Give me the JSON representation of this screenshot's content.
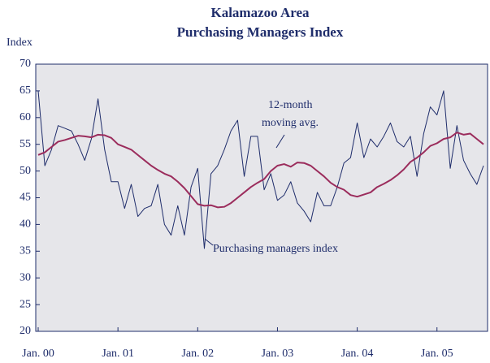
{
  "chart_data": {
    "type": "line",
    "title": [
      "Kalamazoo Area",
      "Purchasing Managers Index"
    ],
    "y_label": "Index",
    "annotations": [
      [
        "12-month",
        "moving avg."
      ],
      [
        "Purchasing managers index"
      ]
    ],
    "categories": [
      "Jan. 00",
      null,
      null,
      null,
      null,
      null,
      null,
      null,
      null,
      null,
      null,
      null,
      "Jan. 01",
      null,
      null,
      null,
      null,
      null,
      null,
      null,
      null,
      null,
      null,
      null,
      "Jan. 02",
      null,
      null,
      null,
      null,
      null,
      null,
      null,
      null,
      null,
      null,
      null,
      "Jan. 03",
      null,
      null,
      null,
      null,
      null,
      null,
      null,
      null,
      null,
      null,
      null,
      "Jan. 04",
      null,
      null,
      null,
      null,
      null,
      null,
      null,
      null,
      null,
      null,
      null,
      "Jan. 05",
      null,
      null,
      null,
      null,
      null,
      null,
      null
    ],
    "series": [
      {
        "name": "Purchasing managers index",
        "color": "#1f2d6b",
        "width": 1,
        "values": [
          65,
          51,
          54,
          58.5,
          58,
          57.5,
          55,
          52,
          56,
          63.5,
          54,
          48,
          48,
          43,
          47.5,
          41.5,
          43,
          43.5,
          47.5,
          40,
          38,
          43.5,
          38,
          47,
          50.5,
          35.5,
          49.5,
          51,
          54,
          57.5,
          59.5,
          49,
          56.5,
          56.5,
          46.5,
          49.5,
          44.5,
          45.5,
          48,
          44,
          42.5,
          40.5,
          46,
          43.5,
          43.5,
          47,
          51.5,
          52.5,
          59,
          52.5,
          56,
          54.5,
          56.5,
          59,
          55.5,
          54.5,
          56.5,
          49,
          57,
          62,
          60.5,
          65,
          50.5,
          58.5,
          52,
          49.5,
          47.5,
          51
        ]
      },
      {
        "name": "12-month moving avg.",
        "color": "#9b2c5c",
        "width": 2,
        "values": [
          53,
          53.5,
          54.5,
          55.5,
          55.8,
          56.2,
          56.6,
          56.5,
          56.3,
          56.8,
          56.7,
          56.2,
          55,
          54.5,
          54,
          53,
          52,
          51,
          50.2,
          49.5,
          49,
          48,
          46.8,
          45.3,
          43.8,
          43.5,
          43.6,
          43.2,
          43.3,
          44,
          45,
          46,
          47,
          47.8,
          48.5,
          50,
          51,
          51.3,
          50.8,
          51.6,
          51.5,
          51,
          50,
          49,
          47.8,
          47,
          46.5,
          45.5,
          45.2,
          45.6,
          46,
          47,
          47.6,
          48.3,
          49.2,
          50.3,
          51.7,
          52.5,
          53.5,
          54.7,
          55.2,
          56,
          56.3,
          57.2,
          56.8,
          57,
          56,
          55
        ]
      }
    ],
    "ylim": [
      20,
      70
    ],
    "yticks": [
      20,
      25,
      30,
      35,
      40,
      45,
      50,
      55,
      60,
      65,
      70
    ],
    "background": "#e6e6ea"
  }
}
